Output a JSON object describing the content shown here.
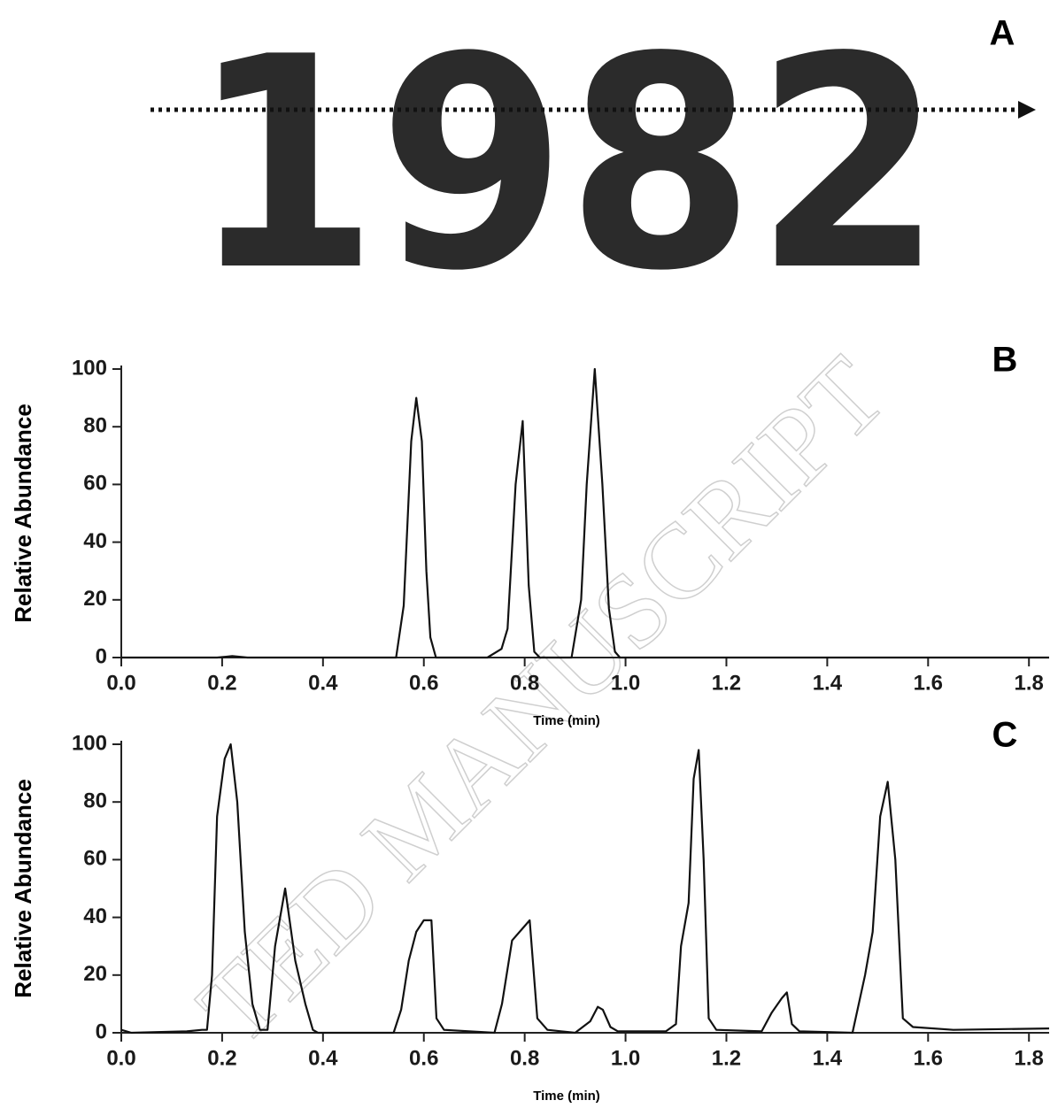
{
  "panel_a": {
    "label": "A",
    "text": "1982"
  },
  "watermark": "TED MANUSCRIPT",
  "chart_data": [
    {
      "type": "line",
      "label": "B",
      "ylabel": "Relative Abundance",
      "xlabel": "Time (min)",
      "color": "#111111",
      "xlim": [
        0,
        1.84
      ],
      "ylim": [
        0,
        100
      ],
      "xticks": [
        {
          "value": 0,
          "label": "0.0"
        },
        0.2,
        0.4,
        0.6,
        0.8,
        {
          "value": 1,
          "label": "1.0"
        },
        1.2,
        1.4,
        1.6,
        1.8
      ],
      "yticks": [
        0,
        20,
        40,
        60,
        80,
        100
      ],
      "x": [
        0,
        0.1,
        0.19,
        0.22,
        0.25,
        0.3,
        0.545,
        0.56,
        0.575,
        0.585,
        0.596,
        0.605,
        0.613,
        0.624,
        0.726,
        0.754,
        0.766,
        0.782,
        0.796,
        0.808,
        0.819,
        0.83,
        0.893,
        0.912,
        0.923,
        0.939,
        0.954,
        0.967,
        0.979,
        0.989,
        1.2,
        1.5,
        1.84
      ],
      "values": [
        0,
        0,
        0,
        0.5,
        0,
        0,
        0,
        18,
        75,
        90,
        75,
        30,
        7,
        0,
        0,
        3,
        10,
        60,
        82,
        25,
        2,
        0,
        0,
        20,
        60,
        100,
        60,
        17,
        2,
        0,
        0,
        0,
        0
      ]
    },
    {
      "type": "line",
      "label": "C",
      "ylabel": "Relative Abundance",
      "xlabel": "Time (min)",
      "color": "#111111",
      "xlim": [
        0,
        1.84
      ],
      "ylim": [
        0,
        100
      ],
      "xticks": [
        {
          "value": 0,
          "label": "0.0"
        },
        0.2,
        0.4,
        0.6,
        0.8,
        {
          "value": 1,
          "label": "1.0"
        },
        1.2,
        1.4,
        1.6,
        1.8
      ],
      "yticks": [
        0,
        20,
        40,
        60,
        80,
        100
      ],
      "x": [
        0,
        0.02,
        0.13,
        0.16,
        0.17,
        0.18,
        0.19,
        0.205,
        0.217,
        0.23,
        0.245,
        0.26,
        0.275,
        0.29,
        0.305,
        0.325,
        0.345,
        0.365,
        0.38,
        0.39,
        0.54,
        0.555,
        0.57,
        0.585,
        0.6,
        0.615,
        0.625,
        0.64,
        0.74,
        0.755,
        0.775,
        0.795,
        0.81,
        0.825,
        0.845,
        0.9,
        0.93,
        0.945,
        0.955,
        0.97,
        0.985,
        1.08,
        1.1,
        1.11,
        1.125,
        1.135,
        1.145,
        1.155,
        1.165,
        1.18,
        1.27,
        1.29,
        1.31,
        1.32,
        1.33,
        1.345,
        1.45,
        1.475,
        1.49,
        1.505,
        1.52,
        1.535,
        1.55,
        1.57,
        1.65,
        1.84
      ],
      "values": [
        1,
        0,
        0.5,
        1,
        1,
        20,
        75,
        95,
        100,
        80,
        35,
        10,
        1,
        1,
        30,
        50,
        25,
        10,
        1,
        0,
        0,
        8,
        25,
        35,
        39,
        39,
        5,
        1,
        0,
        10,
        32,
        36,
        39,
        5,
        1,
        0,
        4,
        9,
        8,
        2,
        0.5,
        0.5,
        3,
        30,
        45,
        88,
        98,
        60,
        5,
        1,
        0.5,
        7,
        12,
        14,
        3,
        0.5,
        0,
        20,
        35,
        75,
        87,
        60,
        5,
        2,
        1,
        1.5
      ]
    }
  ]
}
